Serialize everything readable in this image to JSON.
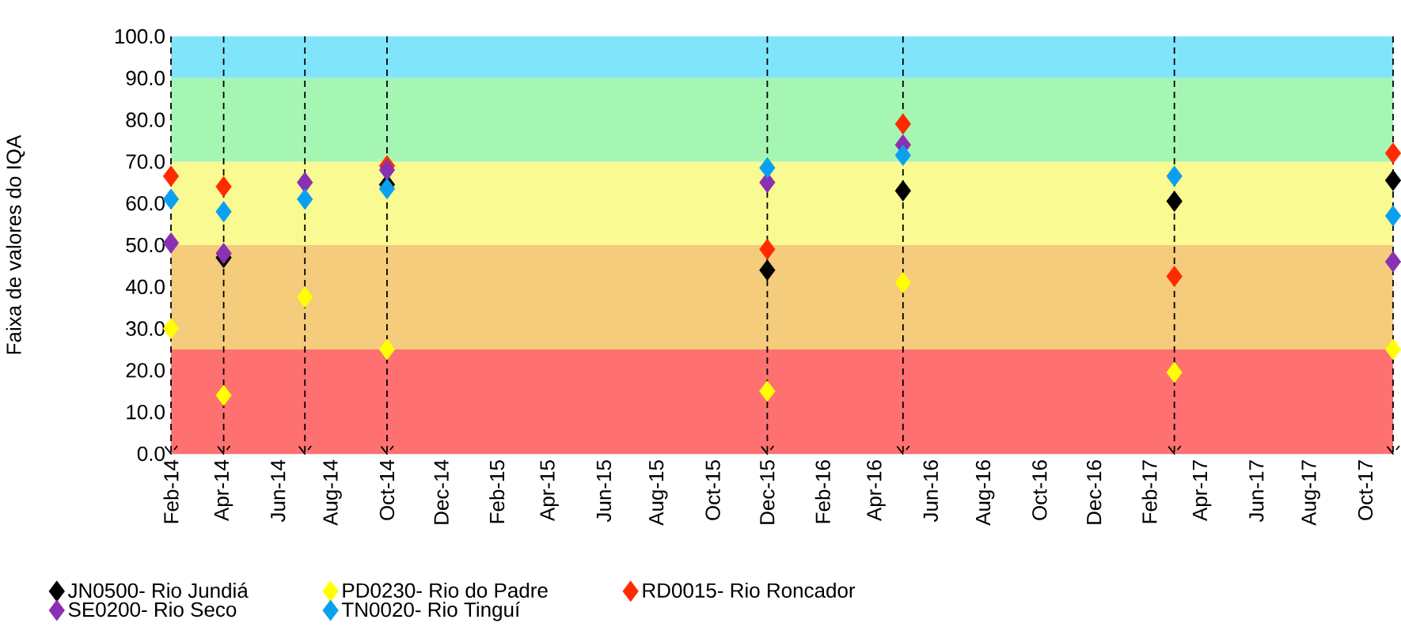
{
  "chart_data": {
    "type": "scatter",
    "ylabel": "Faixa de valores do IQA",
    "x": [
      "2014-02-01",
      "2014-04-01",
      "2014-07-01",
      "2014-10-01",
      "2015-12-01",
      "2016-05-01",
      "2017-03-01",
      "2017-11-01"
    ],
    "series": [
      {
        "name": "JN0500- Rio Jundiá",
        "color": "#000000",
        "values": [
          null,
          47,
          null,
          64.5,
          44,
          63,
          60.5,
          65.5
        ]
      },
      {
        "name": "PD0230- Rio do Padre",
        "color": "#ffff00",
        "values": [
          30,
          14,
          37.5,
          25,
          15,
          41,
          19.5,
          25
        ]
      },
      {
        "name": "RD0015- Rio Roncador",
        "color": "#ff2a00",
        "values": [
          66.5,
          64,
          null,
          69,
          49,
          79,
          42.5,
          72
        ]
      },
      {
        "name": "SE0200- Rio Seco",
        "color": "#8b2fb3",
        "values": [
          50.5,
          48,
          65,
          68,
          65,
          74,
          null,
          46
        ]
      },
      {
        "name": "TN0020- Rio Tinguí",
        "color": "#0aa0f0",
        "values": [
          61,
          58,
          61,
          63.5,
          68.5,
          71.5,
          66.5,
          57
        ]
      }
    ],
    "xlim": [
      "2014-02-01",
      "2017-11-01"
    ],
    "xticks": [
      {
        "value": "2014-02-01",
        "label": "Feb-14"
      },
      {
        "value": "2014-04-01",
        "label": "Apr-14"
      },
      {
        "value": "2014-06-01",
        "label": "Jun-14"
      },
      {
        "value": "2014-08-01",
        "label": "Aug-14"
      },
      {
        "value": "2014-10-01",
        "label": "Oct-14"
      },
      {
        "value": "2014-12-01",
        "label": "Dec-14"
      },
      {
        "value": "2015-02-01",
        "label": "Feb-15"
      },
      {
        "value": "2015-04-01",
        "label": "Apr-15"
      },
      {
        "value": "2015-06-01",
        "label": "Jun-15"
      },
      {
        "value": "2015-08-01",
        "label": "Aug-15"
      },
      {
        "value": "2015-10-01",
        "label": "Oct-15"
      },
      {
        "value": "2015-12-01",
        "label": "Dec-15"
      },
      {
        "value": "2016-02-01",
        "label": "Feb-16"
      },
      {
        "value": "2016-04-01",
        "label": "Apr-16"
      },
      {
        "value": "2016-06-01",
        "label": "Jun-16"
      },
      {
        "value": "2016-08-01",
        "label": "Aug-16"
      },
      {
        "value": "2016-10-01",
        "label": "Oct-16"
      },
      {
        "value": "2016-12-01",
        "label": "Dec-16"
      },
      {
        "value": "2017-02-01",
        "label": "Feb-17"
      },
      {
        "value": "2017-04-01",
        "label": "Apr-17"
      },
      {
        "value": "2017-06-01",
        "label": "Jun-17"
      },
      {
        "value": "2017-08-01",
        "label": "Aug-17"
      },
      {
        "value": "2017-10-01",
        "label": "Oct-17"
      }
    ],
    "ylim": [
      0,
      100
    ],
    "yticks": [
      {
        "value": 0,
        "label": "0.0"
      },
      {
        "value": 10,
        "label": "10.0"
      },
      {
        "value": 20,
        "label": "20.0"
      },
      {
        "value": 30,
        "label": "30.0"
      },
      {
        "value": 40,
        "label": "40.0"
      },
      {
        "value": 50,
        "label": "50.0"
      },
      {
        "value": 60,
        "label": "60.0"
      },
      {
        "value": 70,
        "label": "70.0"
      },
      {
        "value": 80,
        "label": "80.0"
      },
      {
        "value": 90,
        "label": "90.0"
      },
      {
        "value": 100,
        "label": "100.0"
      }
    ],
    "bands": [
      {
        "axis": "y",
        "from": 0,
        "to": 25,
        "color": "#ff7070"
      },
      {
        "axis": "y",
        "from": 25,
        "to": 50,
        "color": "#f5cb7c"
      },
      {
        "axis": "y",
        "from": 50,
        "to": 70,
        "color": "#fafa92"
      },
      {
        "axis": "y",
        "from": 70,
        "to": 90,
        "color": "#a6f6b3"
      },
      {
        "axis": "y",
        "from": 90,
        "to": 100,
        "color": "#80e5fb"
      }
    ],
    "ref_lines": [
      {
        "axis": "x",
        "value": "2014-02-01",
        "line_style": "dashed"
      },
      {
        "axis": "x",
        "value": "2014-04-01",
        "line_style": "dashed"
      },
      {
        "axis": "x",
        "value": "2014-07-01",
        "line_style": "dashed"
      },
      {
        "axis": "x",
        "value": "2014-10-01",
        "line_style": "dashed"
      },
      {
        "axis": "x",
        "value": "2015-12-01",
        "line_style": "dashed"
      },
      {
        "axis": "x",
        "value": "2016-05-01",
        "line_style": "dashed"
      },
      {
        "axis": "x",
        "value": "2017-03-01",
        "line_style": "dashed"
      },
      {
        "axis": "x",
        "value": "2017-11-01",
        "line_style": "dashed"
      }
    ],
    "marker": "diamond",
    "legend": "bottom",
    "grid": false
  }
}
